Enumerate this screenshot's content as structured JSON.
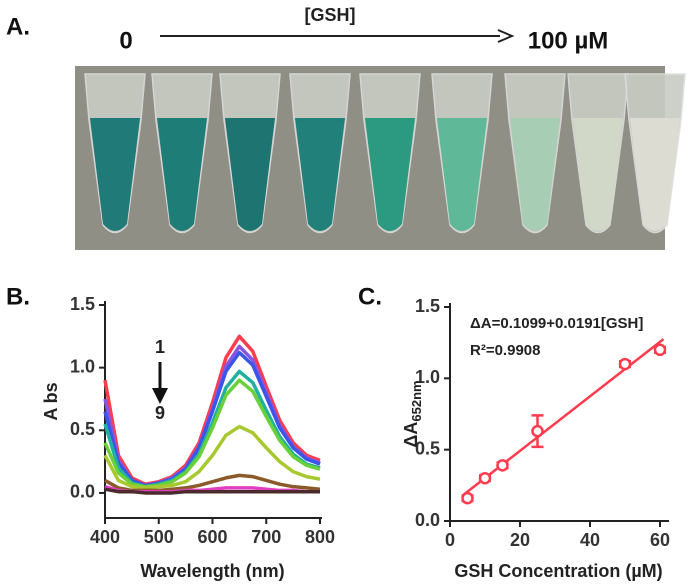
{
  "panel_a": {
    "label": "A.",
    "start": "0",
    "title": "[GSH]",
    "end": "100 µM"
  },
  "chart_data": [
    {
      "type": "line",
      "panel_label": "B.",
      "x_label": "Wavelength (nm)",
      "y_label": "A bs",
      "annotations": [
        "1",
        "9"
      ],
      "x": [
        400,
        425,
        450,
        475,
        500,
        525,
        550,
        575,
        600,
        625,
        650,
        675,
        700,
        725,
        750,
        775,
        800
      ],
      "series": [
        {
          "color": "#ff3b4e",
          "values": [
            0.9,
            0.3,
            0.12,
            0.07,
            0.09,
            0.13,
            0.22,
            0.4,
            0.72,
            1.08,
            1.25,
            1.13,
            0.85,
            0.58,
            0.4,
            0.3,
            0.26
          ]
        },
        {
          "color": "#8a55e0",
          "values": [
            0.75,
            0.26,
            0.1,
            0.06,
            0.08,
            0.12,
            0.2,
            0.37,
            0.67,
            1.01,
            1.17,
            1.06,
            0.8,
            0.54,
            0.37,
            0.28,
            0.24
          ]
        },
        {
          "color": "#3a55e8",
          "values": [
            0.65,
            0.24,
            0.1,
            0.06,
            0.08,
            0.11,
            0.19,
            0.36,
            0.65,
            0.97,
            1.12,
            1.02,
            0.77,
            0.52,
            0.36,
            0.27,
            0.23
          ]
        },
        {
          "color": "#20b0a0",
          "values": [
            0.55,
            0.2,
            0.08,
            0.05,
            0.07,
            0.1,
            0.17,
            0.31,
            0.56,
            0.84,
            0.97,
            0.88,
            0.66,
            0.45,
            0.31,
            0.23,
            0.2
          ]
        },
        {
          "color": "#6ad03a",
          "values": [
            0.4,
            0.16,
            0.07,
            0.05,
            0.06,
            0.09,
            0.16,
            0.29,
            0.52,
            0.78,
            0.9,
            0.81,
            0.61,
            0.42,
            0.29,
            0.22,
            0.19
          ]
        },
        {
          "color": "#a8c830",
          "values": [
            0.3,
            0.1,
            0.05,
            0.04,
            0.05,
            0.06,
            0.09,
            0.17,
            0.3,
            0.46,
            0.53,
            0.48,
            0.36,
            0.25,
            0.17,
            0.13,
            0.11
          ]
        },
        {
          "color": "#8a5a2a",
          "values": [
            0.1,
            0.04,
            0.02,
            0.02,
            0.02,
            0.03,
            0.04,
            0.06,
            0.09,
            0.12,
            0.14,
            0.13,
            0.1,
            0.07,
            0.05,
            0.04,
            0.03
          ]
        },
        {
          "color": "#e040c0",
          "values": [
            0.05,
            0.02,
            0.01,
            0.01,
            0.01,
            0.01,
            0.02,
            0.02,
            0.03,
            0.04,
            0.04,
            0.04,
            0.03,
            0.02,
            0.02,
            0.01,
            0.01
          ]
        },
        {
          "color": "#4a2a2a",
          "values": [
            0.03,
            0.01,
            0.01,
            0.0,
            0.0,
            0.0,
            0.01,
            0.01,
            0.01,
            0.01,
            0.01,
            0.01,
            0.01,
            0.01,
            0.01,
            0.01,
            0.01
          ]
        }
      ],
      "xlim": [
        400,
        800
      ],
      "xticks": [
        400,
        500,
        600,
        700,
        800
      ],
      "ylim": [
        -0.2,
        1.5
      ],
      "yticks": [
        {
          "value": 0,
          "label": "0.0"
        },
        0.5,
        {
          "value": 1,
          "label": "1.0"
        },
        1.5
      ]
    },
    {
      "type": "scatter",
      "panel_label": "C.",
      "x_label": "GSH Concentration (µM)",
      "y_label": [
        "ΔA",
        "652nm"
      ],
      "annotations": [
        "ΔA=0.1099+0.0191[GSH]",
        "R²=0.9908"
      ],
      "color": "#ff3b4e",
      "x": [
        5,
        10,
        15,
        25,
        50,
        60
      ],
      "values": [
        0.16,
        0.3,
        0.39,
        0.63,
        1.1,
        1.2
      ],
      "errors": [
        0.02,
        0.02,
        0.02,
        0.11,
        0.02,
        0.02
      ],
      "fit": {
        "intercept": 0.1099,
        "slope": 0.0191,
        "x": [
          4,
          61
        ]
      },
      "xlim": [
        0,
        62
      ],
      "xticks": [
        0,
        20,
        40,
        60
      ],
      "ylim": [
        0,
        1.5
      ],
      "yticks": [
        {
          "value": 0,
          "label": "0.0"
        },
        0.5,
        {
          "value": 1,
          "label": "1.0"
        },
        1.5
      ]
    }
  ]
}
